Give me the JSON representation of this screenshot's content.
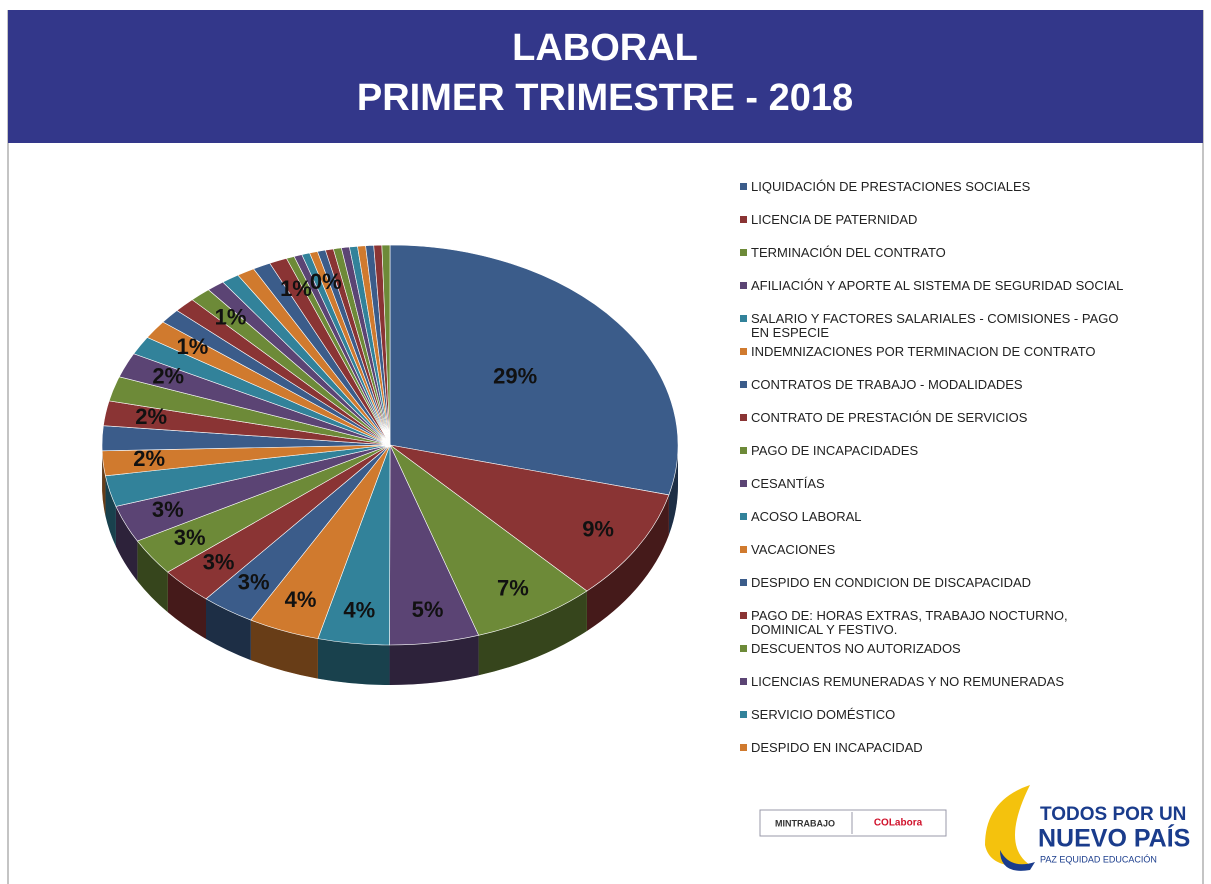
{
  "chart_data": {
    "type": "pie",
    "title": "LABORAL",
    "subtitle": "PRIMER TRIMESTRE - 2018",
    "categories": [
      "LIQUIDACIÓN DE PRESTACIONES SOCIALES",
      "LICENCIA DE PATERNIDAD",
      "TERMINACIÓN DEL CONTRATO",
      "AFILIACIÓN Y APORTE AL SISTEMA DE SEGURIDAD SOCIAL",
      "SALARIO Y FACTORES SALARIALES - COMISIONES - PAGO EN ESPECIE",
      "INDEMNIZACIONES POR TERMINACION DE CONTRATO",
      "CONTRATOS DE TRABAJO - MODALIDADES",
      "CONTRATO DE PRESTACIÓN DE SERVICIOS",
      "PAGO DE INCAPACIDADES",
      "CESANTÍAS",
      "ACOSO LABORAL",
      "VACACIONES",
      "DESPIDO EN CONDICION DE DISCAPACIDAD",
      "PAGO DE: HORAS EXTRAS, TRABAJO NOCTURNO, DOMINICAL Y FESTIVO.",
      "DESCUENTOS NO AUTORIZADOS",
      "LICENCIAS REMUNERADAS Y NO REMUNERADAS",
      "SERVICIO DOMÉSTICO",
      "DESPIDO EN INCAPACIDAD",
      null,
      null,
      null,
      null,
      null,
      null,
      null,
      null,
      null,
      null,
      null,
      null,
      null,
      null,
      null,
      null,
      null,
      null,
      null,
      null,
      null
    ],
    "values": [
      29,
      9,
      7,
      5,
      4,
      4,
      3,
      3,
      3,
      3,
      2.5,
      2,
      2,
      2,
      2,
      2,
      1.5,
      1.5,
      1.2,
      1.2,
      1.2,
      1,
      1,
      1,
      1,
      1,
      0.45,
      0.45,
      0.45,
      0.45,
      0.45,
      0.45,
      0.45,
      0.45,
      0.45,
      0.45,
      0.45,
      0.45,
      0.45
    ],
    "value_labels": [
      "29%",
      "9%",
      "7%",
      "5%",
      "4%",
      "4%",
      "3%",
      "3%",
      "3%",
      "3%",
      null,
      "2%",
      null,
      "2%",
      null,
      "2%",
      null,
      "1%",
      null,
      null,
      "1%",
      null,
      null,
      null,
      null,
      "1%",
      null,
      null,
      null,
      "0%",
      null,
      null,
      null,
      null,
      null,
      null,
      null,
      null,
      null
    ],
    "colors": [
      "#3b5c8a",
      "#8a3434",
      "#6d8a38",
      "#5b4474",
      "#32829a",
      "#d07a2e"
    ]
  },
  "logos": {
    "ministry": "MINTRABAJO",
    "partner": "COLabora",
    "slogan_top": "TODOS POR UN",
    "slogan_main": "NUEVO PAÍS",
    "slogan_sub": "PAZ  EQUIDAD  EDUCACIÓN"
  }
}
